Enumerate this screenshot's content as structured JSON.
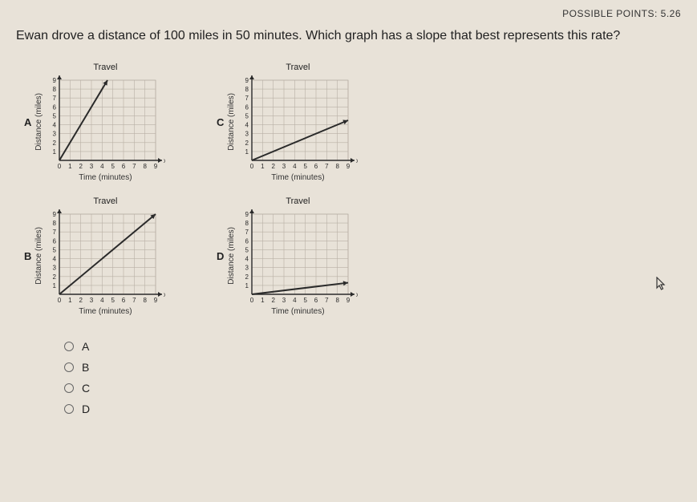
{
  "header": {
    "points_label": "POSSIBLE POINTS: 5.26"
  },
  "question_text": "Ewan drove a distance of 100 miles in 50 minutes. Which graph has a slope that best represents this rate?",
  "chart_common": {
    "title": "Travel",
    "xlabel": "Time (minutes)",
    "ylabel": "Distance (miles)",
    "xlim": [
      0,
      9
    ],
    "ylim": [
      0,
      9
    ],
    "xticks": [
      0,
      1,
      2,
      3,
      4,
      5,
      6,
      7,
      8,
      9
    ],
    "yticks": [
      1,
      2,
      3,
      4,
      5,
      6,
      7,
      8,
      9
    ],
    "grid_color": "#b8b0a5",
    "axis_color": "#2a2a2a",
    "line_color": "#2a2a2a",
    "bg_color": "#e8e2d8",
    "tick_fontsize": 8,
    "title_fontsize": 11,
    "label_fontsize": 10
  },
  "charts": {
    "A": {
      "letter": "A",
      "line": {
        "x1": 0,
        "y1": 0,
        "x2": 4.5,
        "y2": 9
      },
      "slope": 2
    },
    "B": {
      "letter": "B",
      "line": {
        "x1": 0,
        "y1": 0,
        "x2": 9,
        "y2": 9
      },
      "slope": 1
    },
    "C": {
      "letter": "C",
      "line": {
        "x1": 0,
        "y1": 0,
        "x2": 9,
        "y2": 4.5
      },
      "slope": 0.5
    },
    "D": {
      "letter": "D",
      "line": {
        "x1": 0,
        "y1": 0,
        "x2": 9,
        "y2": 1.3
      },
      "slope": 0.14
    }
  },
  "answers": [
    {
      "label": "A",
      "value": "A"
    },
    {
      "label": "B",
      "value": "B"
    },
    {
      "label": "C",
      "value": "C"
    },
    {
      "label": "D",
      "value": "D"
    }
  ]
}
